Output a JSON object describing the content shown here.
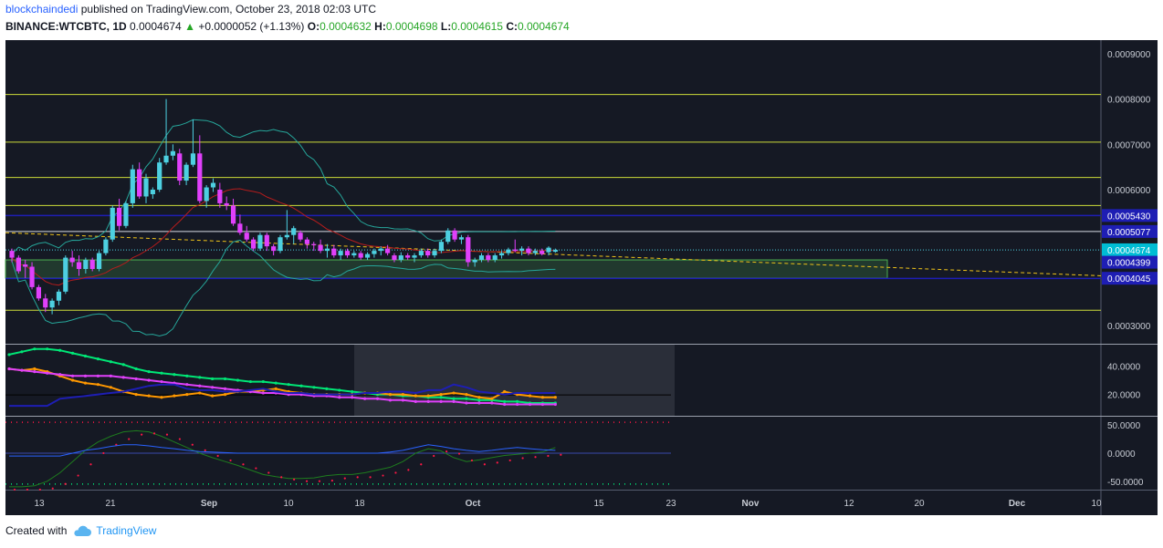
{
  "header": {
    "user": "blockchaindedi",
    "published_text": " published on TradingView.com, October 23, 2018 02:03 UTC",
    "symbol": "BINANCE:WTCBTC, 1D",
    "last": "0.0004674",
    "arrow": "▲",
    "change": "+0.0000052 (+1.13%)",
    "o_label": "O:",
    "o_value": "0.0004632",
    "h_label": "H:",
    "h_value": "0.0004698",
    "l_label": "L:",
    "l_value": "0.0004615",
    "c_label": "C:",
    "c_value": "0.0004674"
  },
  "footer": {
    "created_with": "Created with",
    "brand": "TradingView"
  },
  "colors": {
    "bg": "#151924",
    "up": "#4dd0e1",
    "down": "#e040fb",
    "level_line": "#cddc39",
    "blue_level": "#1e1eb4",
    "bb": "#26a69a",
    "ma": "#b71c1c"
  },
  "chart_data": [
    {
      "type": "candlestick",
      "title": "BINANCE:WTCBTC, 1D",
      "x_ticks": [
        "13",
        "21",
        "Sep",
        "10",
        "18",
        "Oct",
        "15",
        "23",
        "Nov",
        "12",
        "20",
        "Dec",
        "10"
      ],
      "ylim": [
        0.00026,
        0.00093
      ],
      "y_ticks": [
        "0.0009000",
        "0.0008000",
        "0.0007000",
        "0.0006000",
        "0.0003000"
      ],
      "horizontal_levels": [
        0.00081,
        0.000705,
        0.000627,
        0.000565,
        0.000334
      ],
      "blue_levels": [
        0.000543,
        0.000404
      ],
      "price_labels": [
        {
          "text": "0.0005430",
          "kind": "blue"
        },
        {
          "text": "0.0005077",
          "kind": "blue"
        },
        {
          "text": "0.0004674",
          "kind": "current"
        },
        {
          "text": "0.0004399",
          "kind": "blue"
        },
        {
          "text": "0.0004045",
          "kind": "blue"
        }
      ],
      "label_values": [
        0.000543,
        0.0005077,
        0.0004674,
        0.0004399,
        0.0004045
      ],
      "support_zone": [
        0.000405,
        0.000445
      ],
      "candles_ohlc": [
        [
          0.000465,
          0.00047,
          0.00044,
          0.00045
        ],
        [
          0.00045,
          0.000455,
          0.000415,
          0.00042
        ],
        [
          0.000435,
          0.000445,
          0.000405,
          0.00043
        ],
        [
          0.00043,
          0.00044,
          0.00038,
          0.000385
        ],
        [
          0.000385,
          0.00039,
          0.000355,
          0.00036
        ],
        [
          0.00036,
          0.00037,
          0.00033,
          0.00034
        ],
        [
          0.00034,
          0.00036,
          0.000325,
          0.000355
        ],
        [
          0.000355,
          0.00038,
          0.000345,
          0.000375
        ],
        [
          0.000375,
          0.000455,
          0.00037,
          0.00045
        ],
        [
          0.00045,
          0.000465,
          0.00043,
          0.00044
        ],
        [
          0.00044,
          0.000455,
          0.00041,
          0.000425
        ],
        [
          0.000425,
          0.00045,
          0.000415,
          0.000445
        ],
        [
          0.000445,
          0.00045,
          0.00042,
          0.000425
        ],
        [
          0.000425,
          0.000465,
          0.00042,
          0.00046
        ],
        [
          0.00046,
          0.000495,
          0.000455,
          0.00049
        ],
        [
          0.00049,
          0.000565,
          0.000485,
          0.00056
        ],
        [
          0.00056,
          0.00058,
          0.00051,
          0.00052
        ],
        [
          0.00052,
          0.000575,
          0.000515,
          0.00057
        ],
        [
          0.00057,
          0.000655,
          0.00056,
          0.000645
        ],
        [
          0.000645,
          0.00066,
          0.00058,
          0.000585
        ],
        [
          0.000585,
          0.000635,
          0.00057,
          0.000625
        ],
        [
          0.00059,
          0.000605,
          0.00058,
          0.0006
        ],
        [
          0.0006,
          0.00067,
          0.000595,
          0.00066
        ],
        [
          0.00066,
          0.0008,
          0.000655,
          0.000675
        ],
        [
          0.000675,
          0.0007,
          0.000665,
          0.000685
        ],
        [
          0.00068,
          0.00069,
          0.00061,
          0.00062
        ],
        [
          0.00062,
          0.00066,
          0.00061,
          0.000655
        ],
        [
          0.000655,
          0.000755,
          0.00065,
          0.00068
        ],
        [
          0.00068,
          0.00072,
          0.00057,
          0.000575
        ],
        [
          0.000575,
          0.00061,
          0.00056,
          0.000605
        ],
        [
          0.000605,
          0.000625,
          0.000595,
          0.000615
        ],
        [
          0.0006,
          0.000615,
          0.00056,
          0.00057
        ],
        [
          0.00057,
          0.000585,
          0.000555,
          0.000565
        ],
        [
          0.000565,
          0.00058,
          0.00052,
          0.000525
        ],
        [
          0.000525,
          0.000545,
          0.0005,
          0.000505
        ],
        [
          0.000505,
          0.00052,
          0.000485,
          0.00049
        ],
        [
          0.00049,
          0.000495,
          0.000465,
          0.00047
        ],
        [
          0.00047,
          0.000505,
          0.000465,
          0.0005
        ],
        [
          0.0005,
          0.000505,
          0.000465,
          0.000475
        ],
        [
          0.000475,
          0.00048,
          0.000455,
          0.000465
        ],
        [
          0.000465,
          0.0005,
          0.00046,
          0.000495
        ],
        [
          0.000495,
          0.000555,
          0.00049,
          0.0005
        ],
        [
          0.0005,
          0.00052,
          0.00048,
          0.000515
        ],
        [
          0.000505,
          0.00051,
          0.000485,
          0.00049
        ],
        [
          0.00049,
          0.000495,
          0.00047,
          0.00048
        ],
        [
          0.00048,
          0.000485,
          0.000465,
          0.000478
        ],
        [
          0.000478,
          0.00049,
          0.00046,
          0.000465
        ],
        [
          0.000465,
          0.00048,
          0.00045,
          0.00047
        ],
        [
          0.00047,
          0.000478,
          0.00045,
          0.000455
        ],
        [
          0.000455,
          0.00047,
          0.000445,
          0.000465
        ],
        [
          0.000465,
          0.00047,
          0.00045,
          0.000455
        ],
        [
          0.000455,
          0.000465,
          0.00045,
          0.00046
        ],
        [
          0.00046,
          0.000465,
          0.000445,
          0.00045
        ],
        [
          0.00045,
          0.000462,
          0.000445,
          0.000458
        ],
        [
          0.000458,
          0.00047,
          0.00045,
          0.000465
        ],
        [
          0.000465,
          0.000475,
          0.000455,
          0.00047
        ],
        [
          0.00047,
          0.000478,
          0.000455,
          0.00046
        ],
        [
          0.000455,
          0.00046,
          0.00044,
          0.000445
        ],
        [
          0.000445,
          0.000462,
          0.00044,
          0.000455
        ],
        [
          0.000455,
          0.00046,
          0.000445,
          0.00045
        ],
        [
          0.00045,
          0.00046,
          0.00044,
          0.000455
        ],
        [
          0.000455,
          0.00047,
          0.00045,
          0.000465
        ],
        [
          0.000465,
          0.00047,
          0.00045,
          0.000455
        ],
        [
          0.000455,
          0.00047,
          0.00045,
          0.000465
        ],
        [
          0.000465,
          0.00049,
          0.00046,
          0.000485
        ],
        [
          0.000485,
          0.000515,
          0.00048,
          0.00051
        ],
        [
          0.00051,
          0.000515,
          0.000485,
          0.00049
        ],
        [
          0.00049,
          0.0005,
          0.00048,
          0.000495
        ],
        [
          0.000495,
          0.0005,
          0.00043,
          0.00044
        ],
        [
          0.00044,
          0.00045,
          0.00043,
          0.000445
        ],
        [
          0.000445,
          0.00046,
          0.00044,
          0.000455
        ],
        [
          0.000455,
          0.00046,
          0.00044,
          0.000445
        ],
        [
          0.000445,
          0.00046,
          0.00044,
          0.000455
        ],
        [
          0.000455,
          0.000465,
          0.000448,
          0.00046
        ],
        [
          0.00046,
          0.000472,
          0.000455,
          0.000468
        ],
        [
          0.000468,
          0.00049,
          0.000462,
          0.000465
        ],
        [
          0.000465,
          0.000475,
          0.000455,
          0.00047
        ],
        [
          0.00047,
          0.000475,
          0.000455,
          0.00046
        ],
        [
          0.00046,
          0.00047,
          0.000455,
          0.000465
        ],
        [
          0.000465,
          0.00047,
          0.000455,
          0.000458
        ],
        [
          0.000462,
          0.000475,
          0.000455,
          0.000472
        ],
        [
          0.000463,
          0.00047,
          0.000461,
          0.000467
        ]
      ]
    },
    {
      "type": "line",
      "title": "",
      "ylim": [
        5,
        55
      ],
      "y_ticks": [
        "40.0000",
        "20.0000"
      ],
      "series": [
        {
          "color": "#00e676",
          "values": [
            48,
            50,
            52,
            52,
            51,
            49,
            47,
            45,
            43,
            41,
            38,
            36,
            35,
            34,
            33,
            32,
            31,
            31,
            30,
            29,
            29,
            28,
            27,
            26,
            25,
            24,
            23,
            22,
            21,
            20,
            20,
            19,
            19,
            18,
            18,
            17,
            17,
            16,
            16,
            15,
            15,
            14,
            14,
            14
          ]
        },
        {
          "color": "#ff9800",
          "values": [
            38,
            37,
            38,
            36,
            33,
            30,
            28,
            27,
            25,
            22,
            20,
            19,
            18,
            19,
            20,
            21,
            19,
            20,
            22,
            22,
            23,
            24,
            22,
            21,
            20,
            20,
            20,
            20,
            21,
            21,
            20,
            20,
            19,
            19,
            20,
            21,
            20,
            18,
            17,
            22,
            20,
            19,
            18,
            18
          ]
        },
        {
          "color": "#e040fb",
          "values": [
            38,
            37,
            36,
            35,
            34,
            33,
            33,
            33,
            33,
            32,
            31,
            30,
            29,
            28,
            27,
            26,
            25,
            24,
            23,
            22,
            21,
            21,
            20,
            20,
            19,
            19,
            18,
            18,
            17,
            17,
            16,
            16,
            15,
            15,
            15,
            15,
            14,
            14,
            14,
            13,
            13,
            13,
            13,
            13
          ]
        },
        {
          "color": "#1e1eb4",
          "values": [
            12,
            12,
            12,
            12,
            17,
            18,
            19,
            20,
            21,
            22,
            24,
            26,
            27,
            27,
            24,
            23,
            23,
            22,
            22,
            23,
            24,
            22,
            21,
            21,
            20,
            20,
            20,
            20,
            21,
            21,
            22,
            22,
            21,
            23,
            23,
            27,
            25,
            22,
            21,
            20,
            21,
            21,
            21,
            21
          ]
        }
      ]
    },
    {
      "type": "line",
      "title": "",
      "ylim": [
        -65,
        65
      ],
      "y_ticks": [
        "50.0000",
        "0.0000",
        "-50.0000"
      ],
      "series": [
        {
          "color": "#1e7d1e",
          "values": [
            -60,
            -60,
            -58,
            -50,
            -35,
            -15,
            5,
            20,
            30,
            38,
            40,
            38,
            30,
            20,
            10,
            0,
            -8,
            -15,
            -22,
            -30,
            -38,
            -42,
            -45,
            -45,
            -44,
            -40,
            -38,
            -38,
            -35,
            -30,
            -25,
            -15,
            0,
            8,
            4,
            -8,
            -15,
            -12,
            -8,
            -4,
            -2,
            0,
            2,
            10
          ]
        },
        {
          "color": "#2962ff",
          "values": [
            -5,
            -5,
            -5,
            -5,
            -5,
            0,
            5,
            8,
            12,
            15,
            15,
            13,
            10,
            8,
            5,
            3,
            2,
            1,
            0,
            0,
            0,
            0,
            0,
            0,
            0,
            0,
            0,
            0,
            0,
            0,
            2,
            5,
            10,
            15,
            12,
            8,
            5,
            3,
            5,
            8,
            10,
            8,
            6,
            5
          ]
        }
      ]
    }
  ]
}
